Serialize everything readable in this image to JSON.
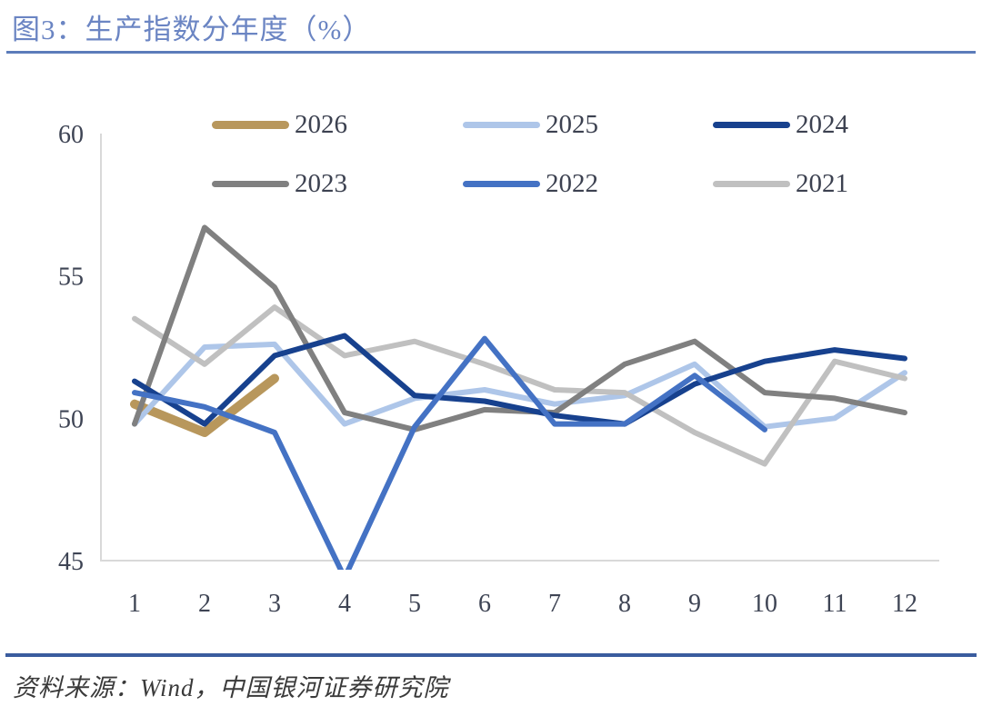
{
  "page": {
    "title": "图3：生产指数分年度（%）",
    "footer": "资料来源：Wind，中国银河证券研究院"
  },
  "colors": {
    "title_text": "#6b85c3",
    "top_rule": "#5c7cba",
    "bottom_rule": "#3a5c9e",
    "axis_line": "#d9d9d9",
    "tick_text": "#3e4454",
    "legend_text": "#3c4150"
  },
  "chart_data": {
    "type": "line",
    "title": "生产指数分年度（%）",
    "xlabel": "",
    "ylabel": "",
    "x_ticks": [
      1,
      2,
      3,
      4,
      5,
      6,
      7,
      8,
      9,
      10,
      11,
      12
    ],
    "y_ticks": [
      60,
      55,
      50,
      45
    ],
    "ylim": [
      45,
      60
    ],
    "grid": false,
    "legend_position": "top",
    "legend_order": [
      "2026",
      "2025",
      "2024",
      "2023",
      "2022",
      "2021"
    ],
    "draw_order": [
      "2026",
      "2025",
      "2021",
      "2023",
      "2024",
      "2022"
    ],
    "series": [
      {
        "name": "2026",
        "color": "#b8975c",
        "line_width": 10,
        "values": [
          50.5,
          49.5,
          51.4
        ]
      },
      {
        "name": "2025",
        "color": "#aec6e9",
        "line_width": 6,
        "values": [
          49.8,
          52.5,
          52.6,
          49.8,
          50.7,
          51.0,
          50.5,
          50.8,
          51.9,
          49.7,
          50.0,
          51.6
        ]
      },
      {
        "name": "2024",
        "color": "#17418e",
        "line_width": 6,
        "values": [
          51.3,
          49.8,
          52.2,
          52.9,
          50.8,
          50.6,
          50.1,
          49.8,
          51.2,
          52.0,
          52.4,
          52.1
        ]
      },
      {
        "name": "2023",
        "color": "#808080",
        "line_width": 6,
        "values": [
          49.8,
          56.7,
          54.6,
          50.2,
          49.6,
          50.3,
          50.2,
          51.9,
          52.7,
          50.9,
          50.7,
          50.2
        ]
      },
      {
        "name": "2022",
        "color": "#4472c4",
        "line_width": 6,
        "values": [
          50.9,
          50.4,
          49.5,
          44.4,
          49.7,
          52.8,
          49.8,
          49.8,
          51.5,
          49.6
        ]
      },
      {
        "name": "2021",
        "color": "#c0c0c0",
        "line_width": 6,
        "values": [
          53.5,
          51.9,
          53.9,
          52.2,
          52.7,
          51.9,
          51.0,
          50.9,
          49.5,
          48.4,
          52.0,
          51.4
        ]
      }
    ]
  }
}
